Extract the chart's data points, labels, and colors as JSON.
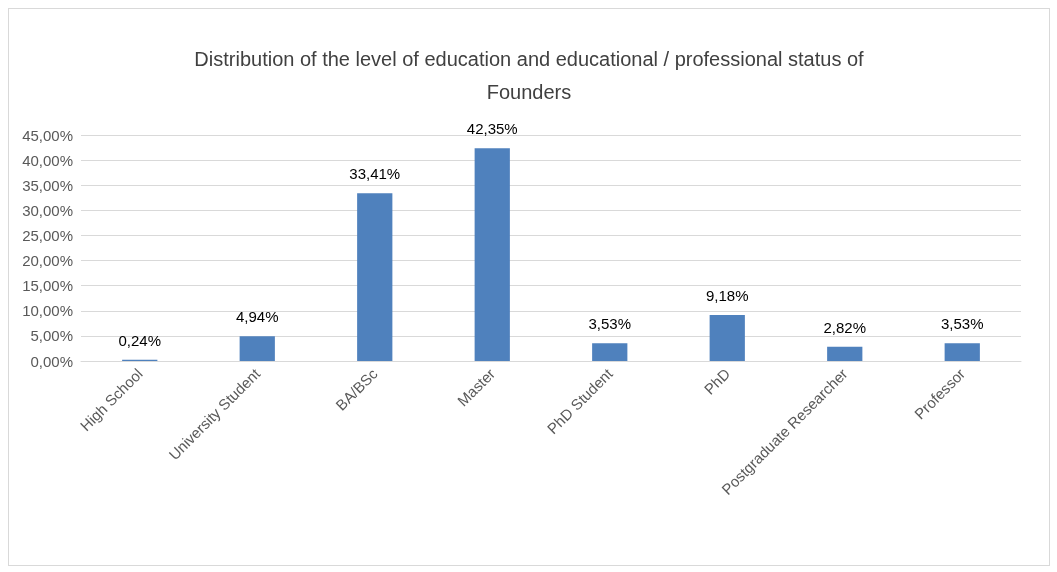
{
  "chart_data": {
    "type": "bar",
    "title": "Distribution of the level of education and educational / professional status of\nFounders",
    "categories": [
      "High School",
      "University Student",
      "BA/BSc",
      "Master",
      "PhD Student",
      "PhD",
      "Postgraduate Researcher",
      "Professor"
    ],
    "values": [
      0.24,
      4.94,
      33.41,
      42.35,
      3.53,
      9.18,
      2.82,
      3.53
    ],
    "value_labels": [
      "0,24%",
      "4,94%",
      "33,41%",
      "42,35%",
      "3,53%",
      "9,18%",
      "2,82%",
      "3,53%"
    ],
    "color": "#4f81bd",
    "ylim": [
      0,
      45
    ],
    "yticks": [
      {
        "value": 0,
        "label": "0,00%"
      },
      {
        "value": 5,
        "label": "5,00%"
      },
      {
        "value": 10,
        "label": "10,00%"
      },
      {
        "value": 15,
        "label": "15,00%"
      },
      {
        "value": 20,
        "label": "20,00%"
      },
      {
        "value": 25,
        "label": "25,00%"
      },
      {
        "value": 30,
        "label": "30,00%"
      },
      {
        "value": 35,
        "label": "35,00%"
      },
      {
        "value": 40,
        "label": "40,00%"
      },
      {
        "value": 45,
        "label": "45,00%"
      }
    ],
    "grid": "y"
  }
}
